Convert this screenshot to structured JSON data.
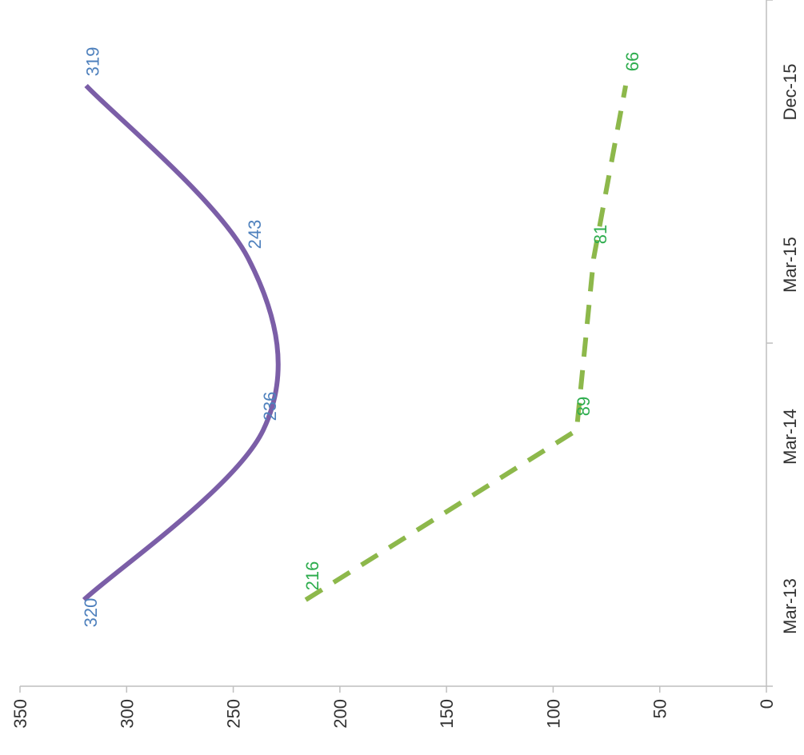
{
  "chart_data": {
    "type": "line",
    "orientation": "rotated-90-clockwise",
    "x": [
      "Mar-13",
      "Mar-14",
      "Mar-15",
      "Dec-15"
    ],
    "x_tick_labels": [
      "Mar-13",
      "Mar-14",
      "Mar-15",
      "Dec-15"
    ],
    "ylim": [
      0,
      350
    ],
    "y_ticks": [
      0,
      50,
      100,
      150,
      200,
      250,
      300,
      350
    ],
    "y_tick_labels": [
      "0",
      "50",
      "100",
      "150",
      "200",
      "250",
      "300",
      "350"
    ],
    "grid": false,
    "series": [
      {
        "values": [
          320,
          236,
          243,
          319
        ],
        "value_labels": [
          "320",
          "236",
          "243",
          "319"
        ],
        "style": "solid-smooth",
        "color": "#7B5EA7",
        "label_color": "#4F81BD"
      },
      {
        "values": [
          216,
          89,
          81,
          66
        ],
        "value_labels": [
          "216",
          "89",
          "81",
          "66"
        ],
        "style": "dashed",
        "color": "#8DB84B",
        "label_color": "#2EAD4E"
      }
    ]
  }
}
